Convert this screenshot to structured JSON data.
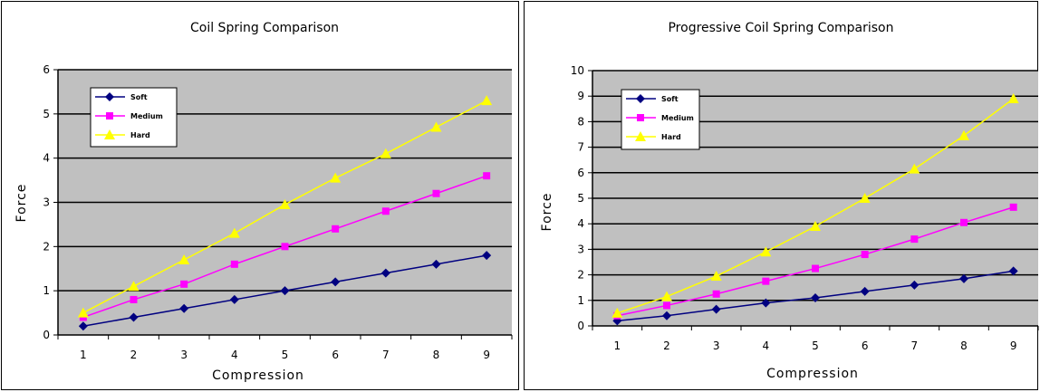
{
  "chart_data": [
    {
      "type": "line",
      "title": "Coil Spring Comparison",
      "xlabel": "Compression",
      "ylabel": "Force",
      "categories": [
        "1",
        "2",
        "3",
        "4",
        "5",
        "6",
        "7",
        "8",
        "9"
      ],
      "ylim": [
        0,
        6
      ],
      "yticks": [
        0,
        1,
        2,
        3,
        4,
        5,
        6
      ],
      "grid": true,
      "legend_position": "top-left",
      "plot_background": "#c0c0c0",
      "series": [
        {
          "name": "Soft",
          "color": "#000080",
          "marker": "diamond",
          "values": [
            0.2,
            0.4,
            0.6,
            0.8,
            1.0,
            1.2,
            1.4,
            1.6,
            1.8
          ]
        },
        {
          "name": "Medium",
          "color": "#ff00ff",
          "marker": "square",
          "values": [
            0.4,
            0.8,
            1.15,
            1.6,
            2.0,
            2.4,
            2.8,
            3.2,
            3.6
          ]
        },
        {
          "name": "Hard",
          "color": "#ffff00",
          "marker": "triangle",
          "values": [
            0.5,
            1.1,
            1.7,
            2.3,
            2.95,
            3.55,
            4.1,
            4.7,
            5.3
          ]
        }
      ]
    },
    {
      "type": "line",
      "title": "Progressive Coil Spring Comparison",
      "xlabel": "Compression",
      "ylabel": "Force",
      "categories": [
        "1",
        "2",
        "3",
        "4",
        "5",
        "6",
        "7",
        "8",
        "9"
      ],
      "ylim": [
        0,
        10
      ],
      "yticks": [
        0,
        1,
        2,
        3,
        4,
        5,
        6,
        7,
        8,
        9,
        10
      ],
      "grid": true,
      "legend_position": "top-left",
      "plot_background": "#c0c0c0",
      "series": [
        {
          "name": "Soft",
          "color": "#000080",
          "marker": "diamond",
          "values": [
            0.2,
            0.4,
            0.65,
            0.9,
            1.1,
            1.35,
            1.6,
            1.85,
            2.15
          ]
        },
        {
          "name": "Medium",
          "color": "#ff00ff",
          "marker": "square",
          "values": [
            0.4,
            0.8,
            1.25,
            1.75,
            2.25,
            2.8,
            3.4,
            4.05,
            4.65
          ]
        },
        {
          "name": "Hard",
          "color": "#ffff00",
          "marker": "triangle",
          "values": [
            0.5,
            1.15,
            1.95,
            2.9,
            3.9,
            5.0,
            6.15,
            7.45,
            8.9
          ]
        }
      ]
    }
  ]
}
